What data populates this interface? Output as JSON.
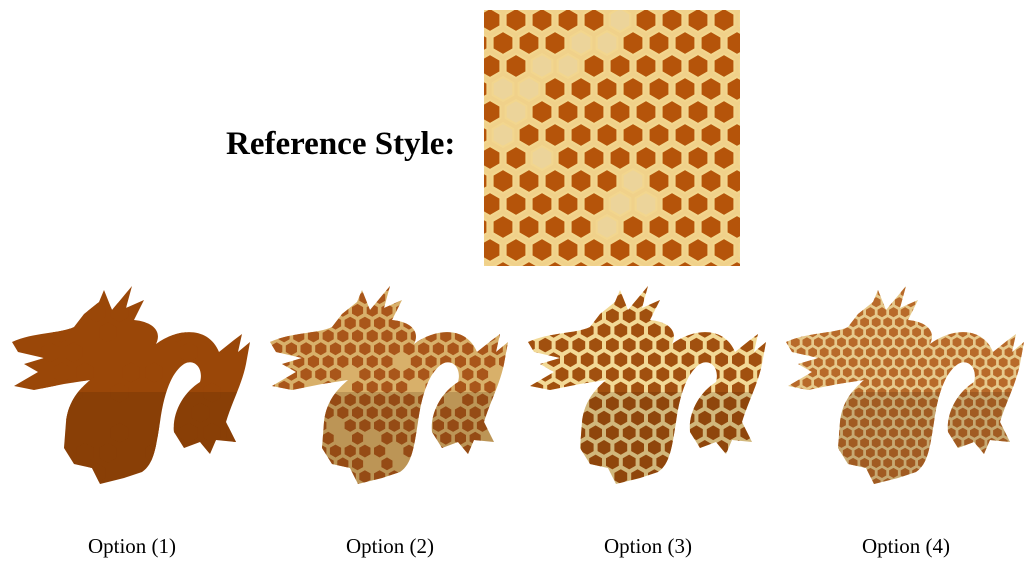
{
  "reference": {
    "label": "Reference Style:"
  },
  "options": [
    {
      "label": "Option (1)"
    },
    {
      "label": "Option (2)"
    },
    {
      "label": "Option (3)"
    },
    {
      "label": "Option (4)"
    }
  ],
  "colors": {
    "cell_dark": "#b5540a",
    "cell_light": "#ecd49a",
    "border": "#f2d68e"
  }
}
